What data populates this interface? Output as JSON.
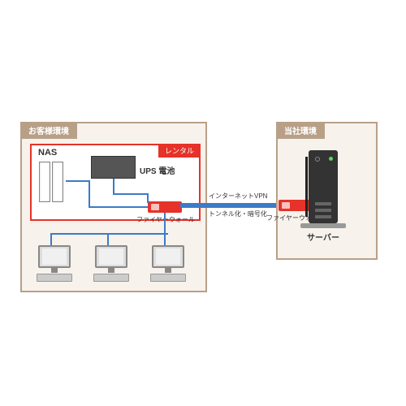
{
  "customer_env": {
    "title": "お客様環境"
  },
  "company_env": {
    "title": "当社環境"
  },
  "rental": {
    "label": "レンタル"
  },
  "nas": {
    "label": "NAS"
  },
  "ups": {
    "label": "UPS 電池"
  },
  "firewall": {
    "label": "ファイヤーウォール"
  },
  "server": {
    "label": "サーバー"
  },
  "vpn": {
    "top_label": "インターネットVPN",
    "bottom_label": "トンネル化・暗号化"
  },
  "colors": {
    "env_border": "#b8a088",
    "env_bg": "#f7f2eb",
    "rental_red": "#e63228",
    "cable_blue": "#3b7bc9",
    "server_body": "#333333"
  },
  "structure": {
    "type": "network-diagram",
    "nodes": [
      {
        "id": "nas",
        "label": "NAS",
        "parent": "customer"
      },
      {
        "id": "ups",
        "label": "UPS 電池",
        "parent": "customer"
      },
      {
        "id": "fw1",
        "label": "ファイヤーウォール",
        "parent": "customer"
      },
      {
        "id": "pc1",
        "parent": "customer"
      },
      {
        "id": "pc2",
        "parent": "customer"
      },
      {
        "id": "pc3",
        "parent": "customer"
      },
      {
        "id": "fw2",
        "label": "ファイヤーウォール",
        "parent": "company"
      },
      {
        "id": "server",
        "label": "サーバー",
        "parent": "company"
      }
    ],
    "edges": [
      {
        "from": "nas",
        "to": "fw1"
      },
      {
        "from": "ups",
        "to": "fw1"
      },
      {
        "from": "fw1",
        "to": "pc1"
      },
      {
        "from": "fw1",
        "to": "pc2"
      },
      {
        "from": "fw1",
        "to": "pc3"
      },
      {
        "from": "fw1",
        "to": "fw2",
        "label_top": "インターネットVPN",
        "label_bottom": "トンネル化・暗号化"
      },
      {
        "from": "fw2",
        "to": "server"
      }
    ]
  }
}
